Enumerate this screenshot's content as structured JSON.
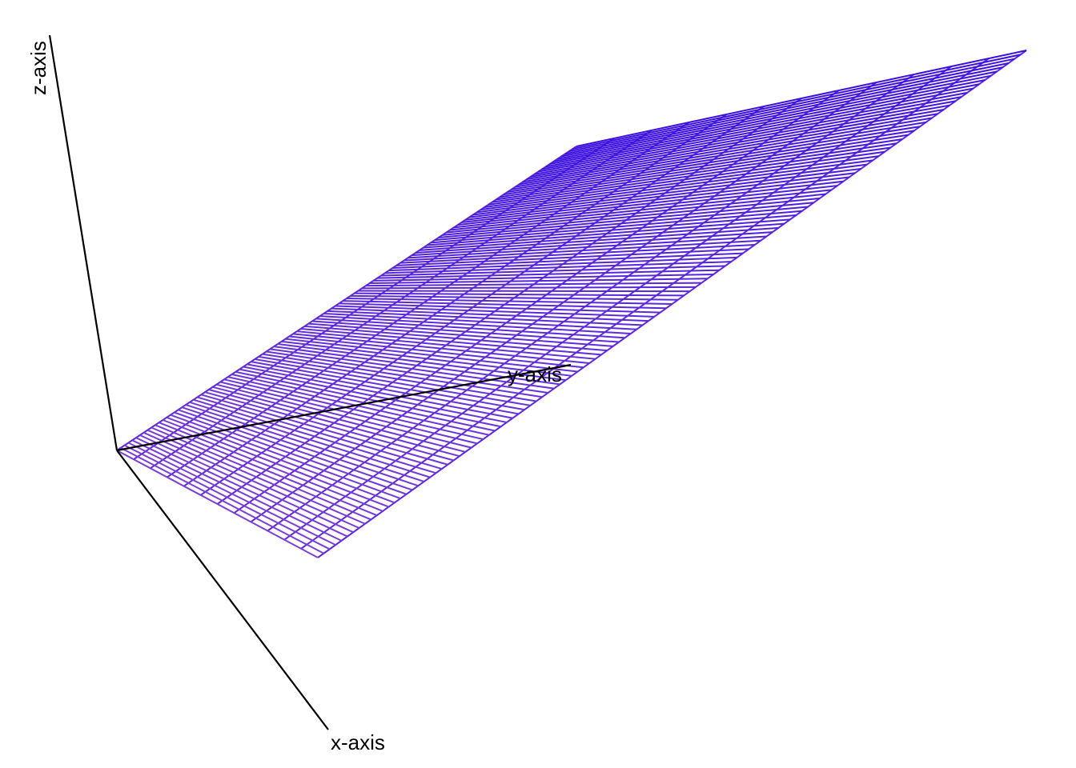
{
  "chart_data": {
    "type": "surface",
    "title": "",
    "xlabel": "x-axis",
    "ylabel": "y-axis",
    "zlabel": "z-axis",
    "render_style": "wireframe",
    "grid_on": false,
    "colors": {
      "surface_low": "#7b3fd6",
      "surface_high": "#3b10e0",
      "axes": "#000000",
      "background": "#ffffff"
    },
    "x_values": [
      0,
      1
    ],
    "y_values": [
      0,
      1
    ],
    "z_values": [
      [
        0,
        1
      ],
      [
        0,
        1
      ]
    ]
  }
}
